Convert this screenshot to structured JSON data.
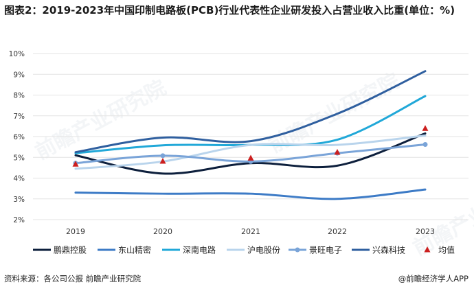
{
  "title": "图表2：2019-2023年中国印制电路板(PCB)行业代表性企业研发投入占营业收入比重(单位：%)",
  "footer": {
    "source": "资料来源：各公司公报 前瞻产业研究院",
    "brand": "@前瞻经济学人APP"
  },
  "watermark": "前瞻产业研究院",
  "chart_data": {
    "type": "line",
    "x": [
      "2019",
      "2020",
      "2021",
      "2022",
      "2023"
    ],
    "ylim": [
      2,
      10
    ],
    "yticks": [
      "2%",
      "3%",
      "4%",
      "5%",
      "6%",
      "7%",
      "8%",
      "9%",
      "10%"
    ],
    "grid": "horizontal",
    "legend_position": "bottom",
    "series": [
      {
        "name": "鹏鼎控股",
        "color": "#0d1f3c",
        "marker": "none",
        "values": [
          5.1,
          4.22,
          4.72,
          4.6,
          6.15
        ]
      },
      {
        "name": "东山精密",
        "color": "#3d7bc6",
        "marker": "none",
        "values": [
          3.3,
          3.25,
          3.25,
          3.0,
          3.45
        ]
      },
      {
        "name": "深南电路",
        "color": "#21a8d8",
        "marker": "none",
        "values": [
          5.2,
          5.58,
          5.6,
          5.85,
          7.95
        ]
      },
      {
        "name": "沪电股份",
        "color": "#b9d4ec",
        "marker": "none",
        "values": [
          4.45,
          4.8,
          5.6,
          5.6,
          6.05
        ]
      },
      {
        "name": "景旺电子",
        "color": "#7aa4d8",
        "marker": "dot",
        "values": [
          4.72,
          5.08,
          4.8,
          5.2,
          5.62
        ]
      },
      {
        "name": "兴森科技",
        "color": "#2f5f9f",
        "marker": "none",
        "values": [
          5.25,
          5.95,
          5.78,
          7.1,
          9.15
        ]
      },
      {
        "name": "均值",
        "color": "#cc1f1f",
        "marker": "triangle",
        "values": [
          4.67,
          4.81,
          4.96,
          5.24,
          6.39
        ]
      }
    ]
  }
}
